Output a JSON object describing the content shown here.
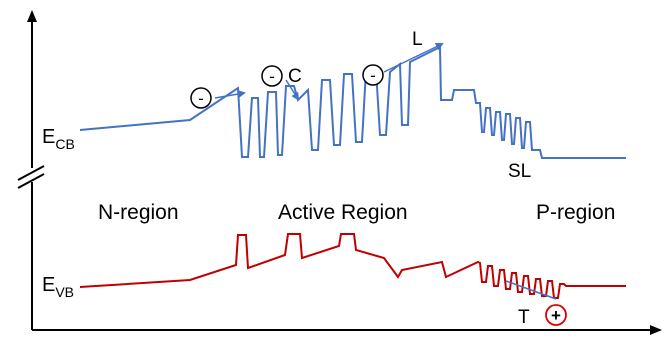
{
  "labels": {
    "ecb_main": "E",
    "ecb_sub": "CB",
    "evb_main": "E",
    "evb_sub": "VB",
    "n_region": "N-region",
    "active_region": "Active Region",
    "p_region": "P-region",
    "sl": "SL",
    "l": "L",
    "c": "C",
    "t": "T"
  },
  "symbols": {
    "electron": "-",
    "hole": "+"
  },
  "colors": {
    "conduction_band": "#4472c4",
    "valence_band": "#c00000",
    "axis": "#000000",
    "hole_circle": "#e00000",
    "electron_circle": "#000000"
  }
}
